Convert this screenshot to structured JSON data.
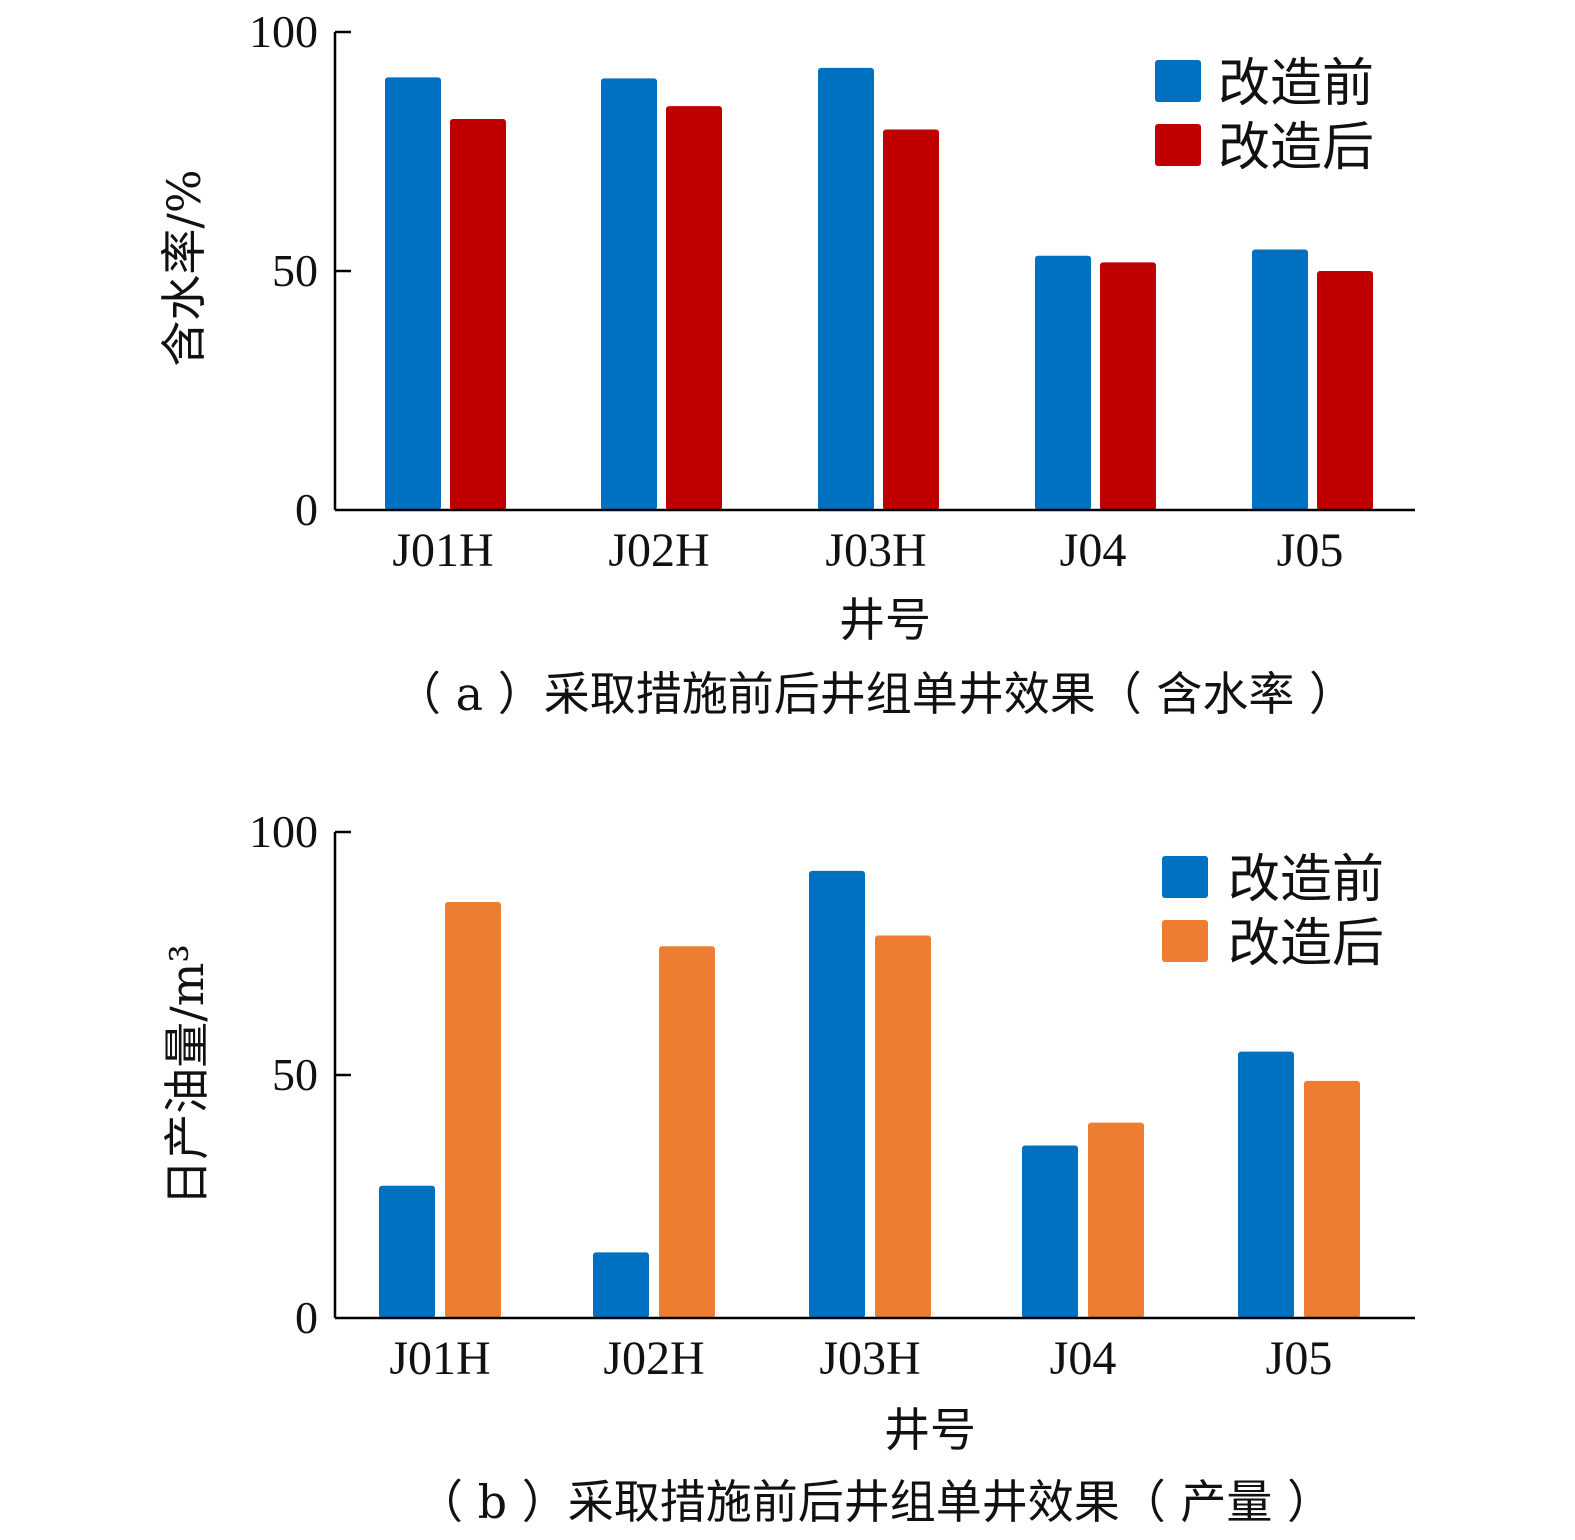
{
  "chart_data": [
    {
      "type": "bar",
      "categories": [
        "J01H",
        "J02H",
        "J03H",
        "J04",
        "J05"
      ],
      "series": [
        {
          "name": "改造前",
          "color": "#0070C0",
          "values": [
            90.5,
            90.3,
            92.5,
            53.2,
            54.5
          ]
        },
        {
          "name": "改造后",
          "color": "#C00000",
          "values": [
            81.8,
            84.5,
            79.6,
            51.8,
            50.0
          ]
        }
      ],
      "xlabel": "井号",
      "ylabel": "含水率/%",
      "ylim": [
        0,
        100
      ],
      "yticks": [
        "0",
        "50",
        "100"
      ],
      "caption": "（ a ）采取措施前后井组单井效果（ 含水率 ）",
      "legend_position": "top-right"
    },
    {
      "type": "bar",
      "categories": [
        "J01H",
        "J02H",
        "J03H",
        "J04",
        "J05"
      ],
      "series": [
        {
          "name": "改造前",
          "color": "#0070C0",
          "values": [
            27.2,
            13.5,
            92.0,
            35.5,
            54.8
          ]
        },
        {
          "name": "改造后",
          "color": "#ED7D31",
          "values": [
            85.6,
            76.5,
            78.7,
            40.2,
            48.8
          ]
        }
      ],
      "xlabel": "井号",
      "ylabel": "日产油量/m³",
      "ylim": [
        0,
        100
      ],
      "yticks": [
        "0",
        "50",
        "100"
      ],
      "caption": "（ b ）采取措施前后井组单井效果（ 产量 ）",
      "legend_position": "top-right"
    }
  ]
}
